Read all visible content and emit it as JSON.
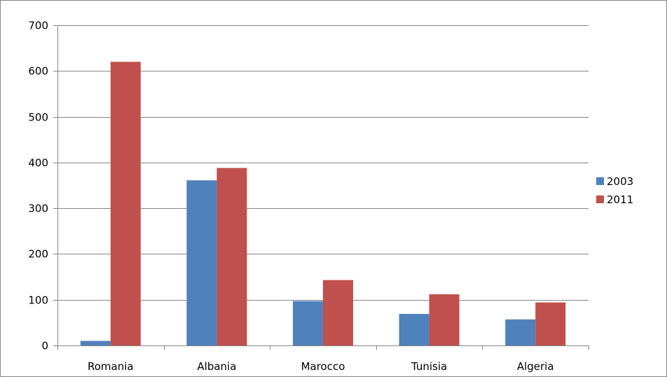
{
  "chart_data": {
    "type": "bar",
    "title": "",
    "xlabel": "",
    "ylabel": "",
    "categories": [
      "Romania",
      "Albania",
      "Marocco",
      "Tunisia",
      "Algeria"
    ],
    "series": [
      {
        "name": "2003",
        "values": [
          10,
          361,
          97,
          69,
          57
        ],
        "color": "#4F81BD"
      },
      {
        "name": "2011",
        "values": [
          620,
          388,
          143,
          112,
          94
        ],
        "color": "#C0504D"
      }
    ],
    "ylim": [
      0,
      700
    ],
    "yticks": [
      0,
      100,
      200,
      300,
      400,
      500,
      600,
      700
    ],
    "grid": true,
    "legend_position": "right",
    "colors": {
      "gridline": "#868686",
      "axis": "#868686",
      "border": "#868686"
    }
  }
}
